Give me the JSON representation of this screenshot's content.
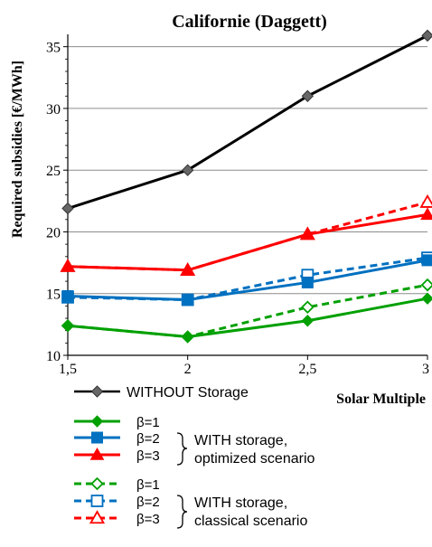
{
  "chart_data": {
    "type": "line",
    "title": "Californie (Daggett)",
    "xlabel": "Solar Multiple",
    "ylabel": "Required subsidies  [€/MWh]",
    "x": [
      1.5,
      2,
      2.5,
      3
    ],
    "x_tick_labels": [
      "1,5",
      "2",
      "2,5",
      "3"
    ],
    "xlim": [
      1.5,
      3
    ],
    "ylim": [
      10,
      36
    ],
    "y_ticks": [
      10,
      15,
      20,
      25,
      30,
      35
    ],
    "grid": "horizontal",
    "series": [
      {
        "name": "WITHOUT Storage",
        "color": "#000000",
        "marker": "diamond-filled",
        "dash": false,
        "values": [
          21.9,
          25.0,
          31.0,
          35.9
        ]
      },
      {
        "name": "β=1",
        "group": "optimized",
        "color": "#00a000",
        "marker": "diamond-filled",
        "dash": false,
        "values": [
          12.4,
          11.5,
          12.8,
          14.6
        ]
      },
      {
        "name": "β=2",
        "group": "optimized",
        "color": "#0070c0",
        "marker": "square-filled",
        "dash": false,
        "values": [
          14.8,
          14.5,
          15.9,
          17.7
        ]
      },
      {
        "name": "β=3",
        "group": "optimized",
        "color": "#ff0000",
        "marker": "triangle-filled",
        "dash": false,
        "values": [
          17.2,
          16.9,
          19.8,
          21.4
        ]
      },
      {
        "name": "β=1",
        "group": "classical",
        "color": "#00a000",
        "marker": "diamond-open",
        "dash": true,
        "values": [
          12.4,
          11.5,
          13.9,
          15.7
        ]
      },
      {
        "name": "β=2",
        "group": "classical",
        "color": "#0070c0",
        "marker": "square-open",
        "dash": true,
        "values": [
          14.7,
          14.5,
          16.5,
          17.9
        ]
      },
      {
        "name": "β=3",
        "group": "classical",
        "color": "#ff0000",
        "marker": "triangle-open",
        "dash": true,
        "values": [
          17.2,
          16.9,
          19.8,
          22.4
        ]
      }
    ]
  },
  "legend": {
    "without_label": "WITHOUT Storage",
    "optimized_labels": [
      "β=1",
      "β=2",
      "β=3"
    ],
    "optimized_text_1": "WITH storage,",
    "optimized_text_2": "optimized scenario",
    "classical_labels": [
      "β=1",
      "β=2",
      "β=3"
    ],
    "classical_text_1": "WITH storage,",
    "classical_text_2": "classical scenario"
  }
}
